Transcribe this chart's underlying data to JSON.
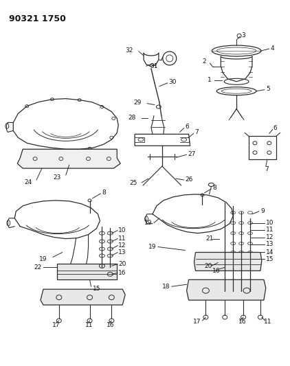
{
  "title": "90321 1750",
  "bg_color": "#ffffff",
  "line_color": "#2a2a2a",
  "text_color": "#111111",
  "fig_width": 4.22,
  "fig_height": 5.33,
  "dpi": 100
}
